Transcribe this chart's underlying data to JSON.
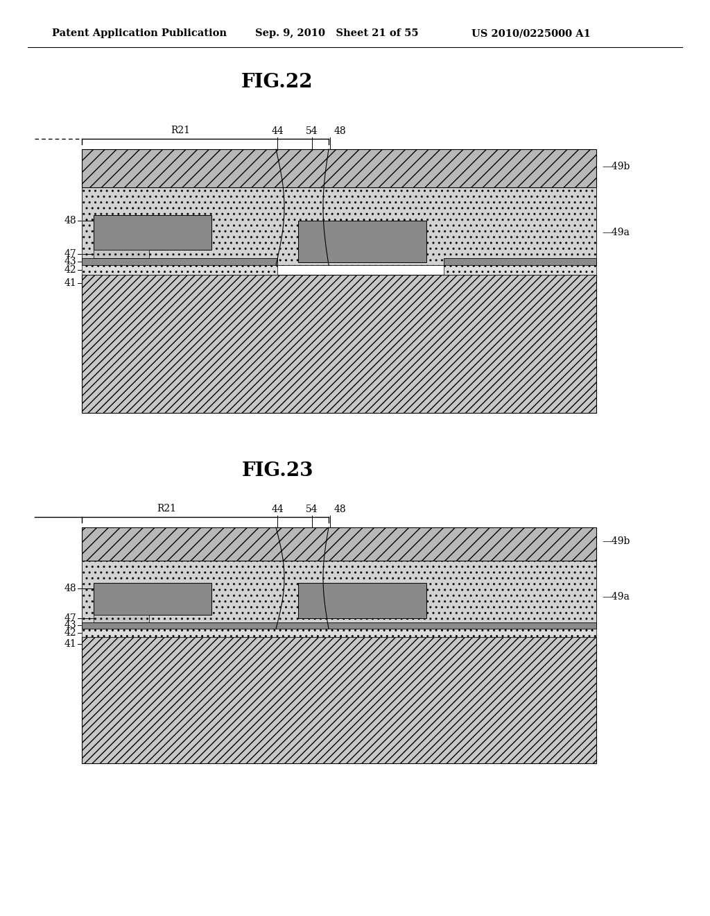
{
  "header_left": "Patent Application Publication",
  "header_mid": "Sep. 9, 2010   Sheet 21 of 55",
  "header_right": "US 2010/0225000 A1",
  "fig22_title": "FIG.22",
  "fig23_title": "FIG.23",
  "bg_color": "#ffffff",
  "text_color": "#000000",
  "c41": "#cccccc",
  "c42": "#dddddd",
  "c43": "#999999",
  "c47": "#bbbbbb",
  "c48": "#888888",
  "c49a": "#c8c8c8",
  "c49b": "#b0b0b0",
  "c49b_face": "#bebebe"
}
